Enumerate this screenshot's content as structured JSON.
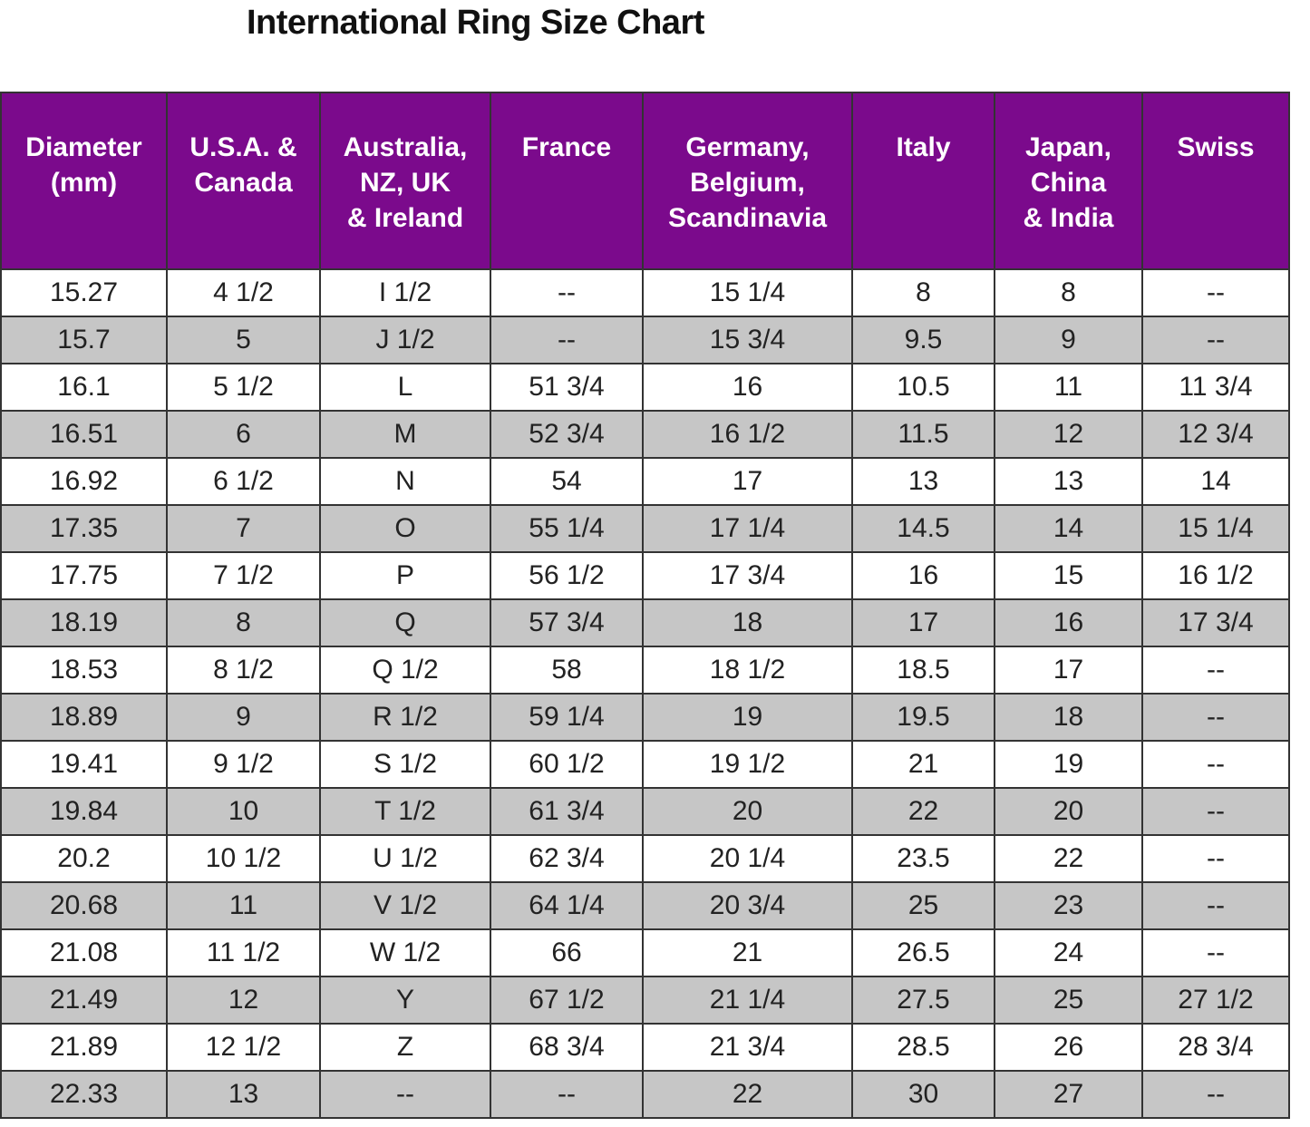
{
  "title": "International Ring Size Chart",
  "table": {
    "headers": [
      [
        "Diameter",
        "(mm)"
      ],
      [
        "U.S.A. &",
        "Canada"
      ],
      [
        "Australia,",
        "NZ, UK",
        "& Ireland"
      ],
      [
        "France"
      ],
      [
        "Germany,",
        "Belgium,",
        "Scandinavia"
      ],
      [
        "Italy"
      ],
      [
        "Japan,",
        "China",
        "& India"
      ],
      [
        "Swiss"
      ]
    ],
    "rows": [
      [
        "15.27",
        "4 1/2",
        "I 1/2",
        "--",
        "15 1/4",
        "8",
        "8",
        "--"
      ],
      [
        "15.7",
        "5",
        "J 1/2",
        "--",
        "15 3/4",
        "9.5",
        "9",
        "--"
      ],
      [
        "16.1",
        "5 1/2",
        "L",
        "51 3/4",
        "16",
        "10.5",
        "11",
        "11 3/4"
      ],
      [
        "16.51",
        "6",
        "M",
        "52 3/4",
        "16 1/2",
        "11.5",
        "12",
        "12 3/4"
      ],
      [
        "16.92",
        "6 1/2",
        "N",
        "54",
        "17",
        "13",
        "13",
        "14"
      ],
      [
        "17.35",
        "7",
        "O",
        "55 1/4",
        "17 1/4",
        "14.5",
        "14",
        "15 1/4"
      ],
      [
        "17.75",
        "7 1/2",
        "P",
        "56 1/2",
        "17 3/4",
        "16",
        "15",
        "16 1/2"
      ],
      [
        "18.19",
        "8",
        "Q",
        "57 3/4",
        "18",
        "17",
        "16",
        "17 3/4"
      ],
      [
        "18.53",
        "8 1/2",
        "Q 1/2",
        "58",
        "18 1/2",
        "18.5",
        "17",
        "--"
      ],
      [
        "18.89",
        "9",
        "R 1/2",
        "59 1/4",
        "19",
        "19.5",
        "18",
        "--"
      ],
      [
        "19.41",
        "9 1/2",
        "S 1/2",
        "60 1/2",
        "19 1/2",
        "21",
        "19",
        "--"
      ],
      [
        "19.84",
        "10",
        "T 1/2",
        "61 3/4",
        "20",
        "22",
        "20",
        "--"
      ],
      [
        "20.2",
        "10 1/2",
        "U 1/2",
        "62 3/4",
        "20 1/4",
        "23.5",
        "22",
        "--"
      ],
      [
        "20.68",
        "11",
        "V 1/2",
        "64 1/4",
        "20 3/4",
        "25",
        "23",
        "--"
      ],
      [
        "21.08",
        "11 1/2",
        "W 1/2",
        "66",
        "21",
        "26.5",
        "24",
        "--"
      ],
      [
        "21.49",
        "12",
        "Y",
        "67 1/2",
        "21 1/4",
        "27.5",
        "25",
        "27 1/2"
      ],
      [
        "21.89",
        "12 1/2",
        "Z",
        "68 3/4",
        "21 3/4",
        "28.5",
        "26",
        "28 3/4"
      ],
      [
        "22.33",
        "13",
        "--",
        "--",
        "22",
        "30",
        "27",
        "--"
      ]
    ]
  }
}
